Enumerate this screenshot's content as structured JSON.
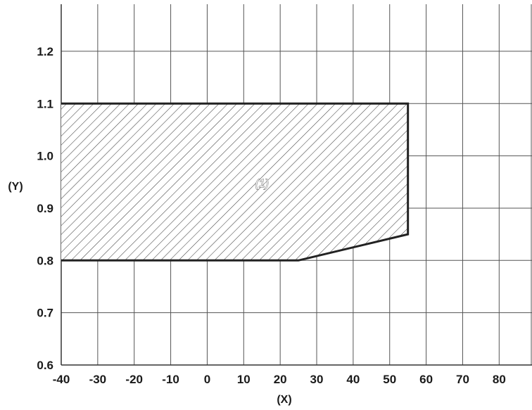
{
  "chart_data": {
    "type": "area",
    "xlabel": "(X)",
    "ylabel": "(Y)",
    "xlim": [
      -40,
      89
    ],
    "ylim": [
      0.6,
      1.29
    ],
    "x_ticks": [
      -40,
      -30,
      -20,
      -10,
      0,
      10,
      20,
      30,
      40,
      50,
      60,
      70,
      80
    ],
    "y_ticks": [
      0.6,
      0.7,
      0.8,
      0.9,
      1.0,
      1.1,
      1.2
    ],
    "x_tick_labels": [
      "-40",
      "-30",
      "-20",
      "-10",
      "0",
      "10",
      "20",
      "30",
      "40",
      "50",
      "60",
      "70",
      "80"
    ],
    "y_tick_labels": [
      "0.6",
      "0.7",
      "0.8",
      "0.9",
      "1.0",
      "1.1",
      "1.2"
    ],
    "grid": true,
    "regions": [
      {
        "label": "(1)",
        "fill": "hatched",
        "label_at": [
          15,
          0.94
        ],
        "polygon": [
          [
            -40,
            0.8
          ],
          [
            25,
            0.8
          ],
          [
            55,
            0.85
          ],
          [
            55,
            1.1
          ],
          [
            -40,
            1.1
          ]
        ]
      }
    ]
  }
}
